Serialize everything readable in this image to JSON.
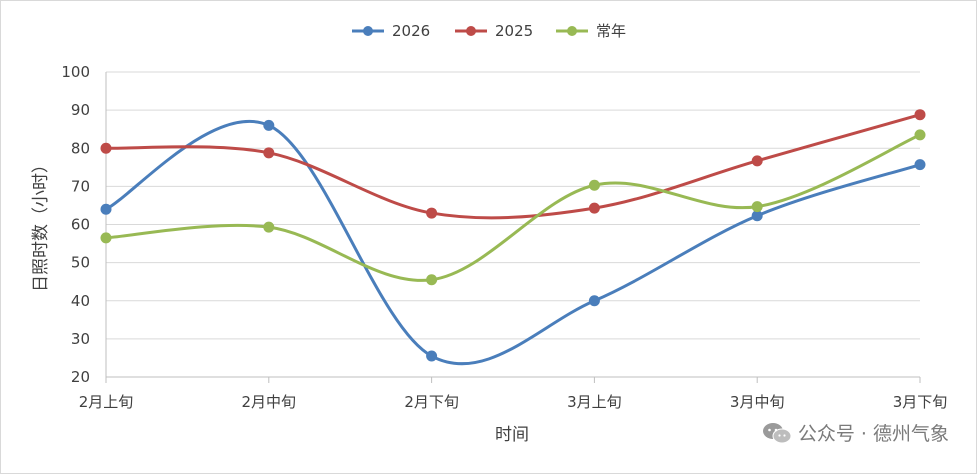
{
  "chart_data": {
    "type": "line",
    "categories": [
      "2月上旬",
      "2月中旬",
      "2月下旬",
      "3月上旬",
      "3月中旬",
      "3月下旬"
    ],
    "series": [
      {
        "name": "2026",
        "color": "#4a7ebb",
        "values": [
          64,
          86,
          25.5,
          40,
          62.3,
          75.7
        ]
      },
      {
        "name": "2025",
        "color": "#be4b48",
        "values": [
          80,
          78.8,
          63,
          64.3,
          76.7,
          88.8
        ]
      },
      {
        "name": "常年",
        "color": "#98b954",
        "values": [
          56.5,
          59.3,
          45.5,
          70.3,
          64.7,
          83.5
        ]
      }
    ],
    "yticks": [
      20,
      30,
      40,
      50,
      60,
      70,
      80,
      90,
      100
    ],
    "ylim": [
      20,
      100
    ],
    "xlabel": "时间",
    "ylabel": "日照时数（小时）",
    "legend_position": "top-center",
    "grid": true,
    "smooth": true
  },
  "watermark": {
    "text": "公众号 · 德州气象",
    "icon": "wechat-icon"
  }
}
